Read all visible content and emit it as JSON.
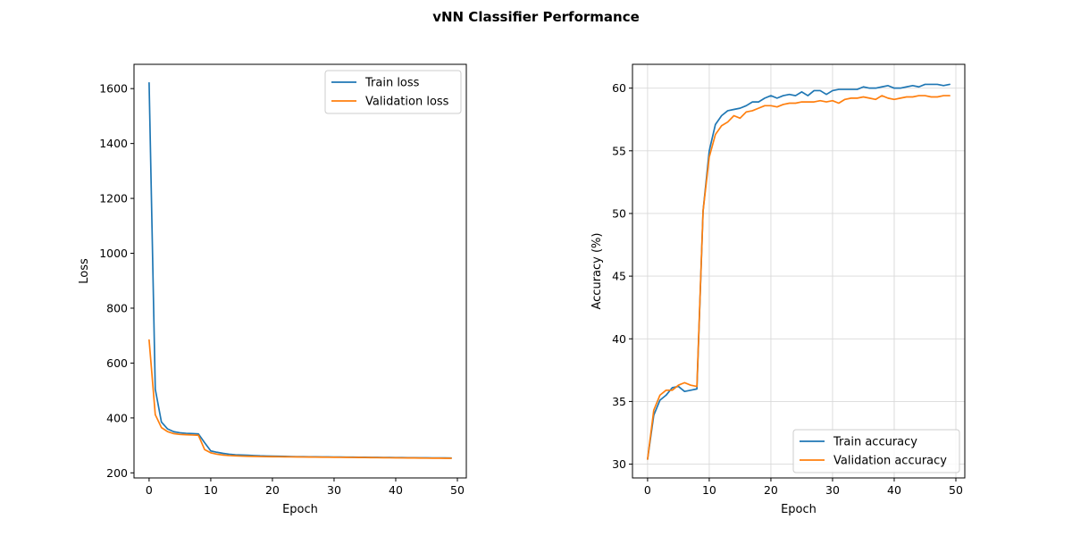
{
  "title": "vNN Classifier Performance",
  "chart_data": [
    {
      "type": "line",
      "xlabel": "Epoch",
      "ylabel": "Loss",
      "xlim": [
        -2.45,
        51.45
      ],
      "ylim": [
        181.5,
        1688.5
      ],
      "xticks": [
        0,
        10,
        20,
        30,
        40,
        50
      ],
      "yticks": [
        200,
        400,
        600,
        800,
        1000,
        1200,
        1400,
        1600
      ],
      "grid": false,
      "legend_loc": "upper right",
      "x": [
        0,
        1,
        2,
        3,
        4,
        5,
        6,
        7,
        8,
        9,
        10,
        11,
        12,
        13,
        14,
        15,
        16,
        17,
        18,
        19,
        20,
        21,
        22,
        23,
        24,
        25,
        26,
        27,
        28,
        29,
        30,
        31,
        32,
        33,
        34,
        35,
        36,
        37,
        38,
        39,
        40,
        41,
        42,
        43,
        44,
        45,
        46,
        47,
        48,
        49
      ],
      "series": [
        {
          "name": "Train loss",
          "color": "#1f77b4",
          "values": [
            1621,
            505,
            385,
            360,
            350,
            346,
            344,
            343,
            342,
            310,
            280,
            275,
            271,
            268,
            266,
            265,
            264,
            263,
            262,
            261.5,
            261,
            260.5,
            260,
            259.5,
            259,
            258.8,
            258.6,
            258.4,
            258.2,
            258,
            257.8,
            257.6,
            257.4,
            257.2,
            257,
            256.8,
            256.6,
            256.4,
            256.2,
            256,
            255.8,
            255.6,
            255.4,
            255.2,
            255,
            254.8,
            254.6,
            254.4,
            254.2,
            254
          ]
        },
        {
          "name": "Validation loss",
          "color": "#ff7f0e",
          "values": [
            684,
            412,
            365,
            350,
            343,
            340,
            339,
            338,
            337,
            285,
            273,
            268,
            265,
            263,
            262,
            261,
            260.5,
            260,
            259.5,
            259,
            258.8,
            258.6,
            258.4,
            258.2,
            258,
            257.8,
            257.6,
            257.4,
            257.2,
            257,
            256.8,
            256.6,
            256.4,
            256.2,
            256,
            255.8,
            255.6,
            255.4,
            255.2,
            255,
            254.8,
            254.6,
            254.4,
            254.2,
            254,
            253.8,
            253.6,
            253.4,
            253.2,
            253
          ]
        }
      ]
    },
    {
      "type": "line",
      "xlabel": "Epoch",
      "ylabel": "Accuracy (%)",
      "xlim": [
        -2.45,
        51.45
      ],
      "ylim": [
        28.9,
        61.9
      ],
      "xticks": [
        0,
        10,
        20,
        30,
        40,
        50
      ],
      "yticks": [
        30,
        35,
        40,
        45,
        50,
        55,
        60
      ],
      "grid": true,
      "legend_loc": "lower right",
      "x": [
        0,
        1,
        2,
        3,
        4,
        5,
        6,
        7,
        8,
        9,
        10,
        11,
        12,
        13,
        14,
        15,
        16,
        17,
        18,
        19,
        20,
        21,
        22,
        23,
        24,
        25,
        26,
        27,
        28,
        29,
        30,
        31,
        32,
        33,
        34,
        35,
        36,
        37,
        38,
        39,
        40,
        41,
        42,
        43,
        44,
        45,
        46,
        47,
        48,
        49
      ],
      "series": [
        {
          "name": "Train accuracy",
          "color": "#1f77b4",
          "values": [
            30.4,
            33.9,
            35.1,
            35.5,
            36.1,
            36.2,
            35.8,
            35.9,
            36.0,
            50.2,
            55.0,
            57.1,
            57.8,
            58.2,
            58.3,
            58.4,
            58.6,
            58.9,
            58.9,
            59.2,
            59.4,
            59.2,
            59.4,
            59.5,
            59.4,
            59.7,
            59.4,
            59.8,
            59.8,
            59.5,
            59.8,
            59.9,
            59.9,
            59.9,
            59.9,
            60.1,
            60.0,
            60.0,
            60.1,
            60.2,
            60.0,
            60.0,
            60.1,
            60.2,
            60.1,
            60.3,
            60.3,
            60.3,
            60.2,
            60.3
          ]
        },
        {
          "name": "Validation accuracy",
          "color": "#ff7f0e",
          "values": [
            30.4,
            34.3,
            35.5,
            35.9,
            35.9,
            36.3,
            36.5,
            36.3,
            36.2,
            50.2,
            54.5,
            56.3,
            57.0,
            57.3,
            57.8,
            57.6,
            58.1,
            58.2,
            58.4,
            58.6,
            58.6,
            58.5,
            58.7,
            58.8,
            58.8,
            58.9,
            58.9,
            58.9,
            59.0,
            58.9,
            59.0,
            58.8,
            59.1,
            59.2,
            59.2,
            59.3,
            59.2,
            59.1,
            59.4,
            59.2,
            59.1,
            59.2,
            59.3,
            59.3,
            59.4,
            59.4,
            59.3,
            59.3,
            59.4,
            59.4
          ]
        }
      ]
    }
  ]
}
